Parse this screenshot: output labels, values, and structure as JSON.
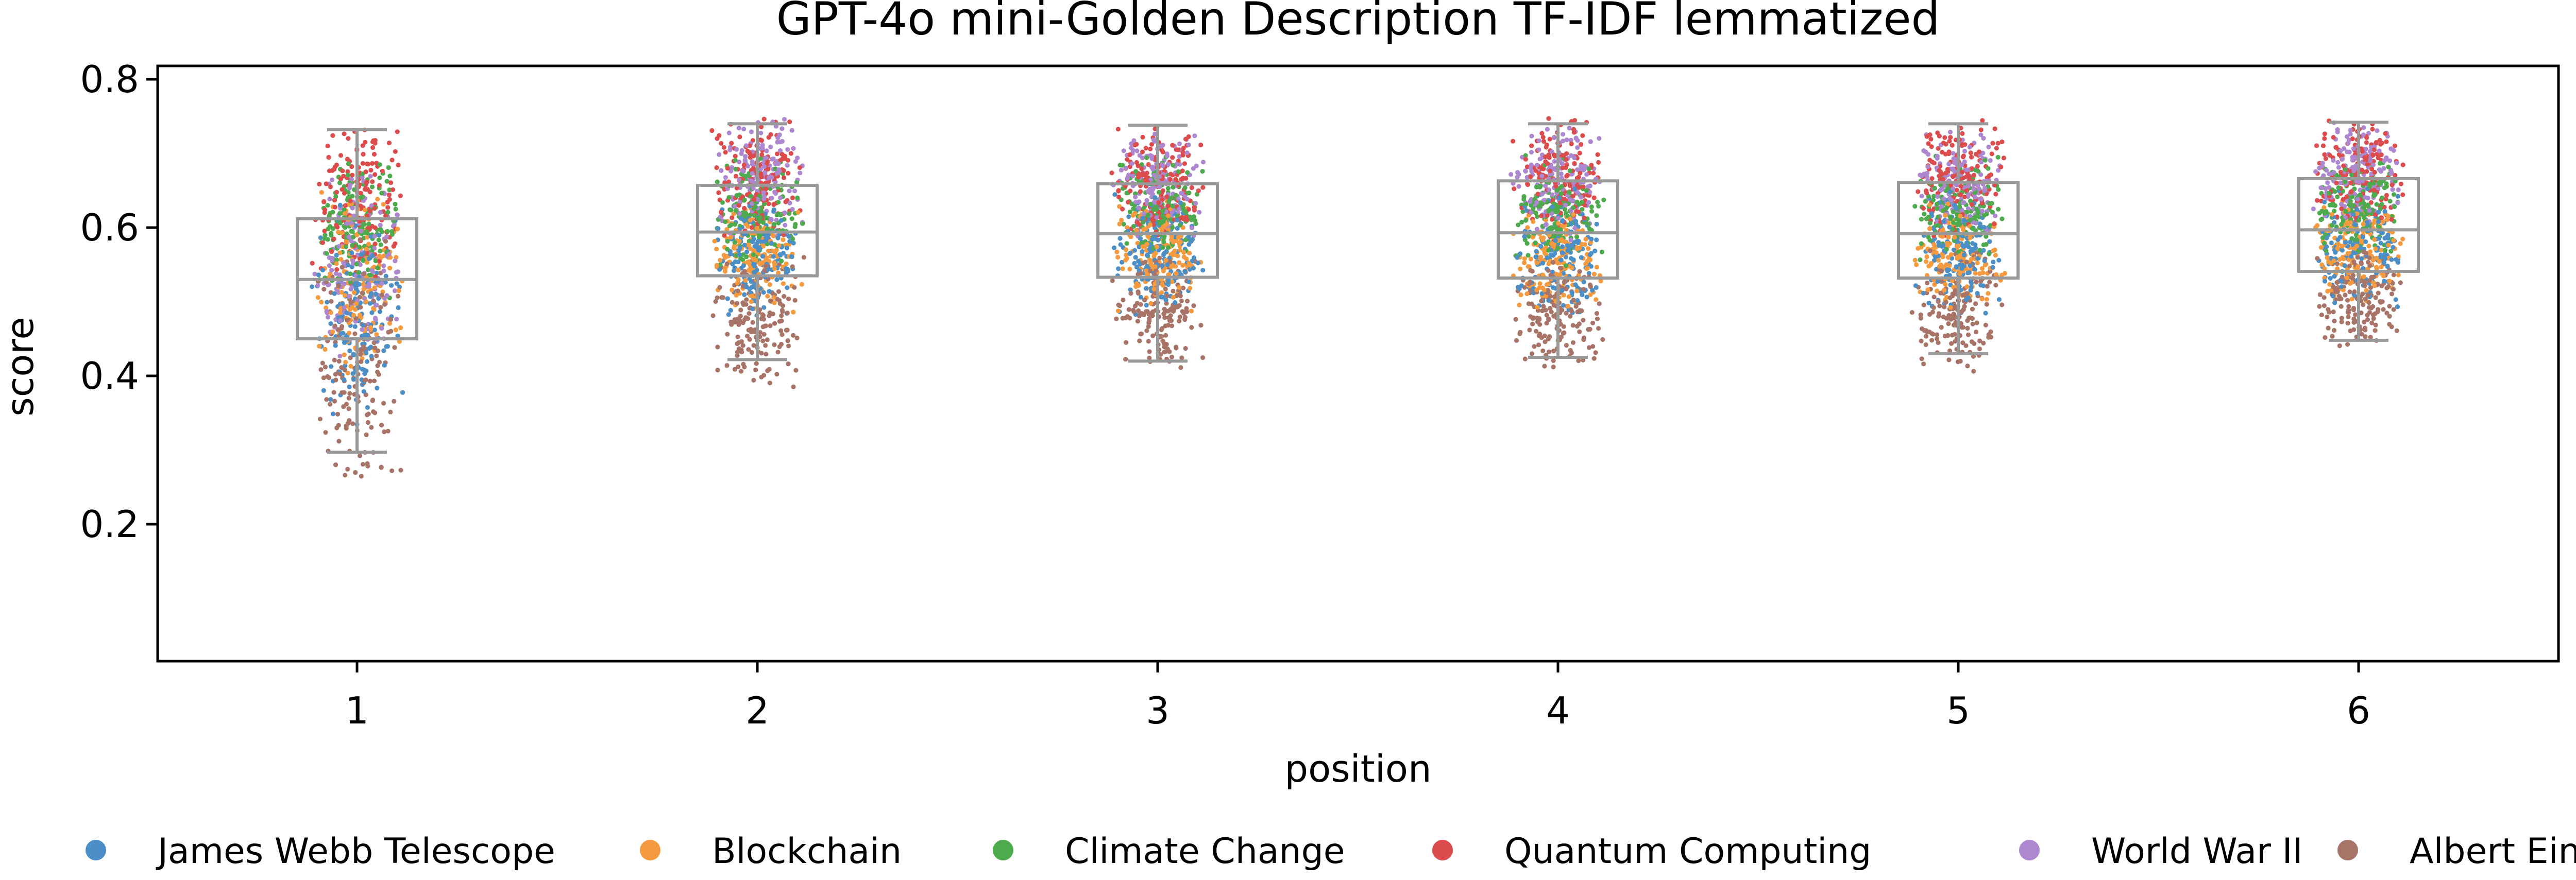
{
  "chart_data": {
    "type": "box_strip",
    "title": "GPT-4o mini-Golden Description TF-IDF lemmatized",
    "xlabel": "position",
    "ylabel": "score",
    "categories": [
      "1",
      "2",
      "3",
      "4",
      "5",
      "6"
    ],
    "ylim": [
      0.0,
      0.82
    ],
    "yticks": [
      0.2,
      0.4,
      0.6,
      0.8
    ],
    "ytick_labels": [
      "0.2",
      "0.4",
      "0.6",
      "0.8"
    ],
    "grid": false,
    "legend_position": "bottom",
    "box_color": "#999999",
    "boxes": [
      {
        "position": "1",
        "whisker_low": 0.297,
        "q1": 0.45,
        "median": 0.53,
        "q3": 0.612,
        "whisker_high": 0.732
      },
      {
        "position": "2",
        "whisker_low": 0.422,
        "q1": 0.535,
        "median": 0.594,
        "q3": 0.657,
        "whisker_high": 0.74
      },
      {
        "position": "3",
        "whisker_low": 0.42,
        "q1": 0.533,
        "median": 0.592,
        "q3": 0.659,
        "whisker_high": 0.738
      },
      {
        "position": "4",
        "whisker_low": 0.425,
        "q1": 0.532,
        "median": 0.593,
        "q3": 0.663,
        "whisker_high": 0.74
      },
      {
        "position": "5",
        "whisker_low": 0.43,
        "q1": 0.532,
        "median": 0.592,
        "q3": 0.661,
        "whisker_high": 0.74
      },
      {
        "position": "6",
        "whisker_low": 0.448,
        "q1": 0.541,
        "median": 0.597,
        "q3": 0.666,
        "whisker_high": 0.742
      }
    ],
    "series": [
      {
        "name": "James Webb Telescope",
        "color": "#4c8fc6",
        "ranges": [
          [
            0.33,
            0.64,
            0.48
          ],
          [
            0.47,
            0.65,
            0.56
          ],
          [
            0.47,
            0.66,
            0.565
          ],
          [
            0.47,
            0.66,
            0.565
          ],
          [
            0.47,
            0.66,
            0.565
          ],
          [
            0.49,
            0.66,
            0.575
          ]
        ]
      },
      {
        "name": "Blockchain",
        "color": "#f59a3e",
        "ranges": [
          [
            0.38,
            0.66,
            0.52
          ],
          [
            0.48,
            0.64,
            0.56
          ],
          [
            0.48,
            0.64,
            0.56
          ],
          [
            0.48,
            0.64,
            0.56
          ],
          [
            0.48,
            0.64,
            0.56
          ],
          [
            0.5,
            0.64,
            0.57
          ]
        ]
      },
      {
        "name": "Climate Change",
        "color": "#4dab4d",
        "ranges": [
          [
            0.5,
            0.7,
            0.6
          ],
          [
            0.54,
            0.7,
            0.62
          ],
          [
            0.55,
            0.7,
            0.625
          ],
          [
            0.54,
            0.7,
            0.62
          ],
          [
            0.55,
            0.7,
            0.625
          ],
          [
            0.56,
            0.7,
            0.63
          ]
        ]
      },
      {
        "name": "Quantum Computing",
        "color": "#dd4c4c",
        "ranges": [
          [
            0.52,
            0.75,
            0.64
          ],
          [
            0.58,
            0.75,
            0.67
          ],
          [
            0.58,
            0.74,
            0.665
          ],
          [
            0.58,
            0.75,
            0.67
          ],
          [
            0.58,
            0.75,
            0.67
          ],
          [
            0.6,
            0.75,
            0.68
          ]
        ]
      },
      {
        "name": "World War II",
        "color": "#ad87cf",
        "ranges": [
          [
            0.42,
            0.68,
            0.55
          ],
          [
            0.58,
            0.76,
            0.67
          ],
          [
            0.58,
            0.73,
            0.66
          ],
          [
            0.58,
            0.74,
            0.665
          ],
          [
            0.58,
            0.74,
            0.665
          ],
          [
            0.6,
            0.75,
            0.68
          ]
        ]
      },
      {
        "name": "Albert Einstein",
        "color": "#a87468",
        "ranges": [
          [
            0.24,
            0.6,
            0.4
          ],
          [
            0.38,
            0.58,
            0.48
          ],
          [
            0.4,
            0.58,
            0.48
          ],
          [
            0.4,
            0.58,
            0.48
          ],
          [
            0.4,
            0.58,
            0.48
          ],
          [
            0.43,
            0.58,
            0.5
          ]
        ]
      }
    ]
  }
}
